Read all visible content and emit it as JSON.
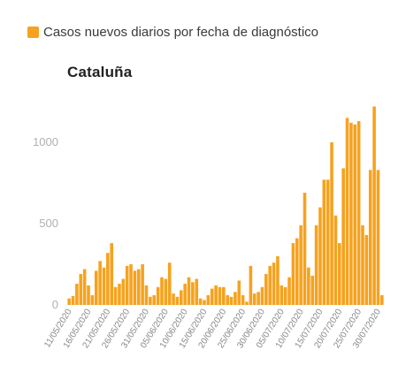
{
  "legend": {
    "label": "Casos nuevos diarios por fecha de diagnóstico",
    "color": "#f6a21e"
  },
  "chart_data": {
    "type": "bar",
    "title": "Cataluña",
    "xlabel": "",
    "ylabel": "",
    "ylim": [
      0,
      1250
    ],
    "yticks": [
      0,
      500,
      1000
    ],
    "grid": false,
    "legend_position": "top-left",
    "bar_color": "#f6a21e",
    "xtick_labels": [
      "11/05/2020",
      "16/05/2020",
      "21/05/2020",
      "26/05/2020",
      "31/05/2020",
      "05/06/2020",
      "10/06/2020",
      "15/06/2020",
      "20/06/2020",
      "25/06/2020",
      "30/06/2020",
      "05/07/2020",
      "10/07/2020",
      "15/07/2020",
      "20/07/2020",
      "25/07/2020",
      "30/07/2020"
    ],
    "xtick_every": 5,
    "series": [
      {
        "values": [
          40,
          55,
          130,
          190,
          220,
          120,
          60,
          210,
          270,
          230,
          320,
          380,
          110,
          130,
          160,
          240,
          250,
          210,
          220,
          250,
          120,
          50,
          60,
          110,
          170,
          160,
          260,
          70,
          50,
          90,
          130,
          170,
          140,
          160,
          40,
          30,
          60,
          100,
          120,
          110,
          110,
          60,
          50,
          80,
          150,
          60,
          20,
          240,
          70,
          80,
          110,
          190,
          240,
          260,
          300,
          120,
          110,
          170,
          380,
          410,
          490,
          690,
          230,
          180,
          490,
          600,
          770,
          770,
          1000,
          550,
          380,
          840,
          1150,
          1120,
          1110,
          1130,
          490,
          430,
          830,
          1220,
          830,
          60
        ]
      }
    ]
  }
}
